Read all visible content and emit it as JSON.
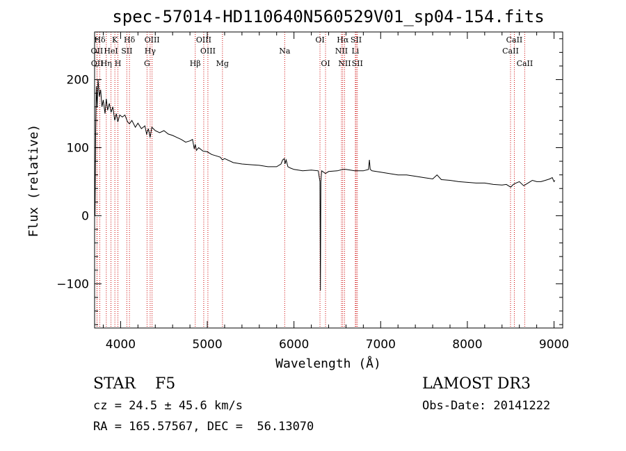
{
  "chart_data": {
    "type": "line",
    "title": "spec-57014-HD110640N560529V01_sp04-154.fits",
    "xlabel": "Wavelength (Å)",
    "ylabel": "Flux (relative)",
    "xlim": [
      3700,
      9100
    ],
    "ylim": [
      -165,
      270
    ],
    "x_ticks": [
      4000,
      5000,
      6000,
      7000,
      8000,
      9000
    ],
    "x_tick_labels": [
      "4000",
      "5000",
      "6000",
      "7000",
      "8000",
      "9000"
    ],
    "y_ticks": [
      -100,
      0,
      100,
      200
    ],
    "y_tick_labels": [
      "−100",
      "0",
      "100",
      "200"
    ],
    "grid": false,
    "series": [
      {
        "color": "#000000",
        "x": [
          3700,
          3705,
          3712,
          3720,
          3730,
          3740,
          3755,
          3770,
          3785,
          3800,
          3820,
          3835,
          3850,
          3870,
          3890,
          3910,
          3933,
          3950,
          3968,
          3990,
          4020,
          4050,
          4080,
          4102,
          4130,
          4170,
          4200,
          4240,
          4280,
          4300,
          4320,
          4340,
          4360,
          4400,
          4450,
          4500,
          4550,
          4600,
          4650,
          4700,
          4750,
          4800,
          4830,
          4850,
          4861,
          4875,
          4900,
          4950,
          5000,
          5050,
          5100,
          5150,
          5175,
          5200,
          5300,
          5400,
          5500,
          5600,
          5700,
          5800,
          5850,
          5870,
          5890,
          5896,
          5910,
          5930,
          5960,
          6000,
          6100,
          6200,
          6280,
          6300,
          6305,
          6310,
          6320,
          6363,
          6400,
          6500,
          6563,
          6600,
          6700,
          6800,
          6860,
          6870,
          6880,
          6900,
          7000,
          7100,
          7200,
          7300,
          7400,
          7500,
          7600,
          7650,
          7700,
          7800,
          7900,
          8000,
          8100,
          8200,
          8300,
          8400,
          8450,
          8500,
          8530,
          8560,
          8600,
          8650,
          8700,
          8750,
          8800,
          8850,
          8900,
          8950,
          8980,
          9000,
          9010
        ],
        "y": [
          30,
          0,
          120,
          190,
          160,
          200,
          175,
          185,
          160,
          170,
          150,
          172,
          155,
          165,
          152,
          160,
          140,
          150,
          138,
          148,
          145,
          148,
          138,
          135,
          140,
          130,
          136,
          128,
          132,
          120,
          128,
          115,
          130,
          125,
          122,
          125,
          120,
          118,
          115,
          112,
          108,
          110,
          112,
          98,
          105,
          96,
          100,
          95,
          94,
          90,
          88,
          86,
          82,
          84,
          78,
          76,
          75,
          74,
          72,
          72,
          76,
          82,
          84,
          76,
          82,
          72,
          70,
          68,
          66,
          67,
          66,
          50,
          -110,
          50,
          66,
          62,
          65,
          66,
          68,
          68,
          66,
          66,
          68,
          82,
          68,
          66,
          64,
          62,
          60,
          60,
          58,
          56,
          54,
          60,
          53,
          52,
          50,
          49,
          48,
          48,
          46,
          45,
          46,
          42,
          46,
          48,
          50,
          44,
          48,
          52,
          50,
          50,
          52,
          54,
          56,
          50,
          52
        ]
      }
    ],
    "spectral_lines": [
      {
        "label": "Hδ",
        "x": 3760,
        "row": 1
      },
      {
        "label": "OII",
        "x": 3727,
        "row": 2
      },
      {
        "label": "OII",
        "x": 3729,
        "row": 3
      },
      {
        "label": "K",
        "x": 3934,
        "row": 1
      },
      {
        "label": "HeI",
        "x": 3889,
        "row": 2
      },
      {
        "label": "Hη",
        "x": 3835,
        "row": 3
      },
      {
        "label": "SII",
        "x": 4072,
        "row": 2
      },
      {
        "label": "H",
        "x": 3969,
        "row": 3
      },
      {
        "label": "Hδ",
        "x": 4102,
        "row": 1
      },
      {
        "label": "OIII",
        "x": 4363,
        "row": 1
      },
      {
        "label": "Hγ",
        "x": 4341,
        "row": 2
      },
      {
        "label": "G",
        "x": 4305,
        "row": 3
      },
      {
        "label": "OIII",
        "x": 4959,
        "row": 1
      },
      {
        "label": "OIII",
        "x": 5007,
        "row": 2
      },
      {
        "label": "Hβ",
        "x": 4861,
        "row": 3
      },
      {
        "label": "Mg",
        "x": 5175,
        "row": 3
      },
      {
        "label": "Na",
        "x": 5893,
        "row": 2
      },
      {
        "label": "OI",
        "x": 6300,
        "row": 1
      },
      {
        "label": "OI",
        "x": 6364,
        "row": 3
      },
      {
        "label": "Hα",
        "x": 6563,
        "row": 1
      },
      {
        "label": "NII",
        "x": 6548,
        "row": 2
      },
      {
        "label": "NII",
        "x": 6584,
        "row": 3
      },
      {
        "label": "SII",
        "x": 6717,
        "row": 1
      },
      {
        "label": "Li",
        "x": 6708,
        "row": 2
      },
      {
        "label": "SII",
        "x": 6731,
        "row": 3
      },
      {
        "label": "CaII",
        "x": 8542,
        "row": 1
      },
      {
        "label": "CaII",
        "x": 8498,
        "row": 2
      },
      {
        "label": "CaII",
        "x": 8662,
        "row": 3
      }
    ],
    "line_marker_color": "#cc0000"
  },
  "info": {
    "class_text": "STAR    F5",
    "survey": "LAMOST DR3",
    "cz": "cz = 24.5 ± 45.6 km/s",
    "obs_date": "Obs-Date: 20141222",
    "radec": "RA = 165.57567, DEC =  56.13070"
  }
}
